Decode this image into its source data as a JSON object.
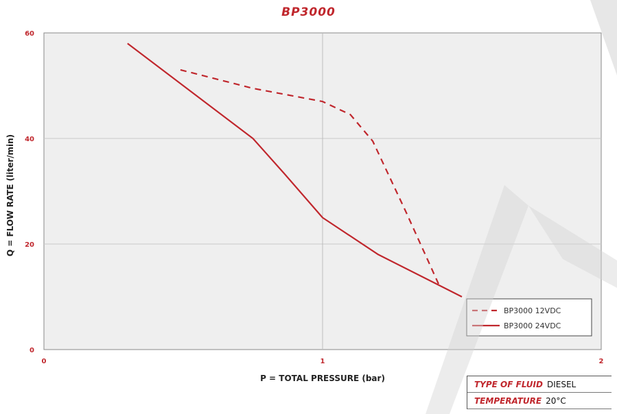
{
  "chart_data": {
    "type": "line",
    "title": "BP3000",
    "xlabel": "P = TOTAL PRESSURE (bar)",
    "ylabel": "Q = FLOW RATE (liter/min)",
    "xlim": [
      0,
      2
    ],
    "ylim": [
      0,
      60
    ],
    "xticks": [
      "0",
      "1",
      "2"
    ],
    "yticks": [
      "0",
      "20",
      "40",
      "60"
    ],
    "grid": true,
    "legend_position": "bottom-right",
    "series": [
      {
        "name": "BP3000 12VDC",
        "style": "dashed",
        "color": "#c0272d",
        "x": [
          0.49,
          0.75,
          1.0,
          1.1,
          1.18,
          1.3,
          1.42
        ],
        "y": [
          53,
          49.5,
          47,
          44.5,
          39.5,
          26,
          12
        ]
      },
      {
        "name": "BP3000 24VDC",
        "style": "solid",
        "color": "#c0272d",
        "x": [
          0.3,
          0.5,
          0.75,
          0.86,
          1.0,
          1.2,
          1.5
        ],
        "y": [
          58,
          50,
          40,
          33.5,
          25,
          18,
          10
        ]
      }
    ]
  },
  "info_table": [
    {
      "key": "TYPE OF FLUID",
      "value": "DIESEL"
    },
    {
      "key": "TEMPERATURE",
      "value": "20°C"
    }
  ]
}
